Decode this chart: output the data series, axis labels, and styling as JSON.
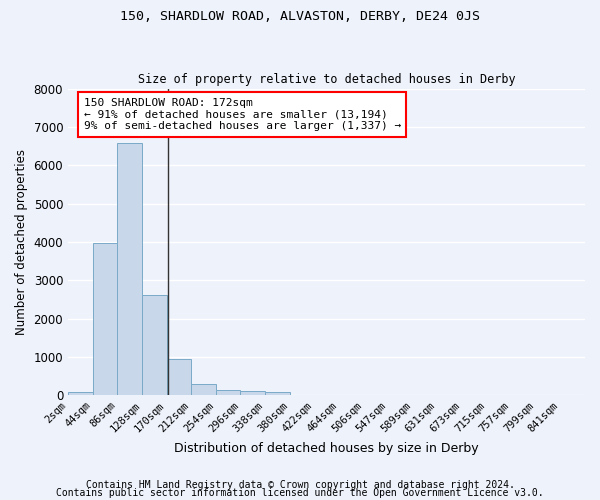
{
  "title_line1": "150, SHARDLOW ROAD, ALVASTON, DERBY, DE24 0JS",
  "title_line2": "Size of property relative to detached houses in Derby",
  "xlabel": "Distribution of detached houses by size in Derby",
  "ylabel": "Number of detached properties",
  "bar_values": [
    75,
    3975,
    6575,
    2625,
    950,
    300,
    125,
    100,
    75,
    0,
    0,
    0,
    0,
    0,
    0,
    0,
    0,
    0,
    0,
    0,
    0
  ],
  "bar_labels": [
    "2sqm",
    "44sqm",
    "86sqm",
    "128sqm",
    "170sqm",
    "212sqm",
    "254sqm",
    "296sqm",
    "338sqm",
    "380sqm",
    "422sqm",
    "464sqm",
    "506sqm",
    "547sqm",
    "589sqm",
    "631sqm",
    "673sqm",
    "715sqm",
    "757sqm",
    "799sqm",
    "841sqm"
  ],
  "bar_color": "#c8d8ea",
  "bar_edge_color": "#7aaac8",
  "vline_color": "#333333",
  "annotation_text": "150 SHARDLOW ROAD: 172sqm\n← 91% of detached houses are smaller (13,194)\n9% of semi-detached houses are larger (1,337) →",
  "annotation_box_color": "white",
  "annotation_box_edge_color": "red",
  "annotation_fontsize": 8.0,
  "ylim": [
    0,
    8000
  ],
  "yticks": [
    0,
    1000,
    2000,
    3000,
    4000,
    5000,
    6000,
    7000,
    8000
  ],
  "background_color": "#eef2fb",
  "grid_color": "white",
  "footer_line1": "Contains HM Land Registry data © Crown copyright and database right 2024.",
  "footer_line2": "Contains public sector information licensed under the Open Government Licence v3.0.",
  "footer_fontsize": 7.0,
  "title_fontsize1": 9.5,
  "title_fontsize2": 8.5,
  "ylabel_fontsize": 8.5,
  "xlabel_fontsize": 9.0,
  "ytick_fontsize": 8.5,
  "xtick_fontsize": 7.5
}
